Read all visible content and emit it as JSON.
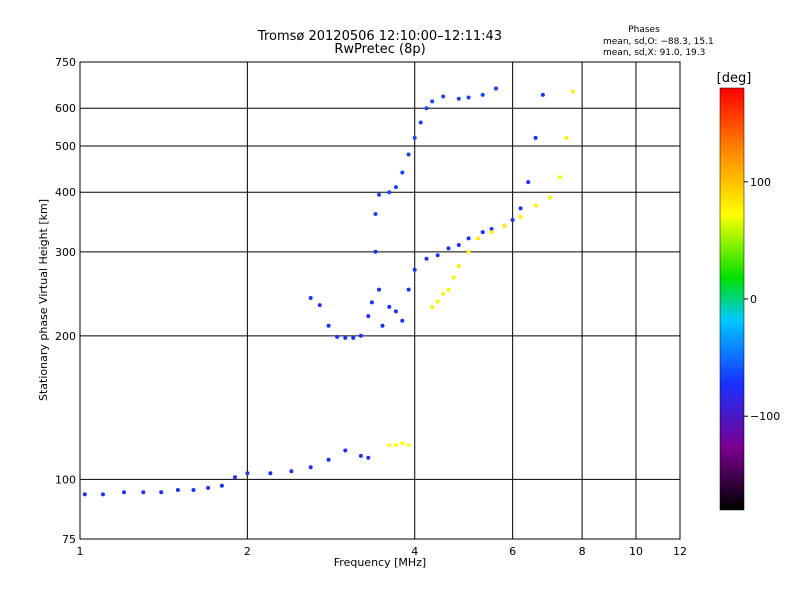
{
  "header": {
    "title_line1": "Tromsø 20120506 12:10:00–12:11:43",
    "title_line2": "RwPretec (8p)",
    "phases_title": "Phases",
    "phases_line1": "mean, sd,O: −88.3, 15.1",
    "phases_line2": "mean, sd,X:  91.0, 19.3"
  },
  "colorbar": {
    "label": "[deg]",
    "tick_labels": [
      "100",
      "0",
      "−100"
    ],
    "tick_values": [
      100,
      0,
      -100
    ],
    "range": [
      -180,
      180
    ],
    "stops": [
      "#000000",
      "#7a0090",
      "#1830ff",
      "#00c8ff",
      "#00e000",
      "#ffff00",
      "#ff8800",
      "#ff0000"
    ]
  },
  "chart_data": {
    "type": "scatter",
    "title": "Tromsø 20120506 12:10:00–12:11:43",
    "subtitle": "RwPretec (8p)",
    "xlabel": "Frequency [MHz]",
    "ylabel": "Stationary phase Virtual Height [km]",
    "xscale": "log",
    "yscale": "log",
    "xlim": [
      1,
      12
    ],
    "ylim": [
      75,
      750
    ],
    "x_ticks": [
      1,
      2,
      4,
      6,
      8,
      10,
      12
    ],
    "x_tick_labels": [
      "1",
      "2",
      "4",
      "6",
      "8",
      "10",
      "12"
    ],
    "y_ticks": [
      75,
      100,
      200,
      300,
      400,
      500,
      600,
      750
    ],
    "y_tick_labels": [
      "75",
      "100",
      "200",
      "300",
      "400",
      "500",
      "600",
      "750"
    ],
    "grid": true,
    "series": [
      {
        "points": [
          [
            1.02,
            93
          ],
          [
            1.1,
            93
          ],
          [
            1.2,
            94
          ],
          [
            1.3,
            94
          ],
          [
            1.4,
            94
          ],
          [
            1.5,
            95
          ],
          [
            1.6,
            95
          ],
          [
            1.7,
            96
          ],
          [
            1.8,
            97
          ],
          [
            1.9,
            101
          ],
          [
            2.0,
            103
          ],
          [
            2.2,
            103
          ],
          [
            2.4,
            104
          ],
          [
            2.6,
            106
          ],
          [
            2.8,
            110
          ],
          [
            3.0,
            115
          ],
          [
            3.2,
            112
          ],
          [
            3.3,
            111
          ]
        ]
      },
      {
        "points": [
          [
            2.6,
            240
          ],
          [
            2.7,
            232
          ],
          [
            2.8,
            210
          ],
          [
            2.9,
            199
          ],
          [
            3.0,
            198
          ],
          [
            3.1,
            198
          ],
          [
            3.2,
            200
          ],
          [
            3.3,
            220
          ],
          [
            3.35,
            235
          ],
          [
            3.4,
            300
          ],
          [
            3.45,
            250
          ],
          [
            3.5,
            210
          ],
          [
            3.6,
            230
          ],
          [
            3.7,
            225
          ],
          [
            3.8,
            215
          ],
          [
            3.9,
            250
          ],
          [
            4.0,
            275
          ],
          [
            4.2,
            290
          ],
          [
            4.4,
            295
          ],
          [
            4.6,
            305
          ],
          [
            4.8,
            310
          ],
          [
            5.0,
            320
          ],
          [
            5.3,
            330
          ],
          [
            5.5,
            335
          ],
          [
            5.8,
            340
          ],
          [
            6.0,
            350
          ],
          [
            6.2,
            370
          ],
          [
            6.4,
            420
          ],
          [
            6.6,
            520
          ],
          [
            6.8,
            640
          ]
        ]
      },
      {
        "points": [
          [
            3.4,
            360
          ],
          [
            3.45,
            395
          ],
          [
            3.6,
            400
          ],
          [
            3.7,
            410
          ],
          [
            3.8,
            440
          ],
          [
            3.9,
            480
          ],
          [
            4.0,
            520
          ],
          [
            4.1,
            560
          ],
          [
            4.2,
            600
          ],
          [
            4.3,
            620
          ],
          [
            4.5,
            635
          ],
          [
            4.8,
            628
          ],
          [
            5.0,
            632
          ],
          [
            5.3,
            640
          ],
          [
            5.6,
            660
          ]
        ]
      },
      {
        "points": [
          [
            4.3,
            230
          ],
          [
            4.4,
            236
          ],
          [
            4.5,
            245
          ],
          [
            4.6,
            250
          ],
          [
            4.7,
            265
          ],
          [
            4.8,
            280
          ],
          [
            5.0,
            300
          ],
          [
            5.2,
            320
          ],
          [
            5.5,
            330
          ],
          [
            5.8,
            340
          ],
          [
            6.2,
            355
          ],
          [
            6.6,
            375
          ],
          [
            7.0,
            390
          ],
          [
            7.3,
            430
          ],
          [
            7.5,
            520
          ],
          [
            7.7,
            650
          ]
        ]
      },
      {
        "points": [
          [
            3.6,
            118
          ],
          [
            3.7,
            118
          ],
          [
            3.8,
            119
          ],
          [
            3.9,
            118
          ]
        ]
      }
    ]
  }
}
